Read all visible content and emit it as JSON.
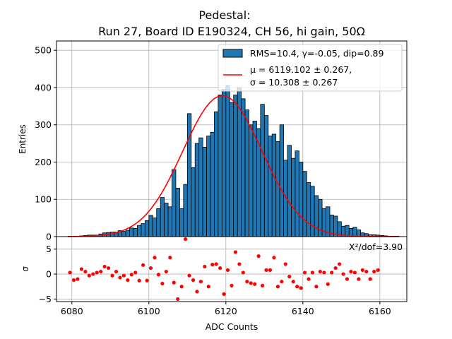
{
  "chart_data": [
    {
      "type": "bar",
      "title_line1": "Pedestal:",
      "title_line2": "Run 27, Board ID E190324, CH 56, hi gain, 50Ω",
      "ylabel": "Entries",
      "xlim": [
        6076,
        6167
      ],
      "ylim": [
        0,
        525
      ],
      "yticks": [
        0,
        100,
        200,
        300,
        400,
        500
      ],
      "grid": true,
      "legend_position": "top-right",
      "legend": [
        {
          "kind": "patch",
          "label": "RMS=10.4, γ=-0.05, dip=0.89"
        },
        {
          "kind": "line",
          "label_line1": "μ = 6119.102 ± 0.267,",
          "label_line2": "σ = 10.308 ± 0.267"
        }
      ],
      "bar_color": "#1f77b4",
      "fit_color": "#ff0000",
      "bin_start": 6079,
      "bin_width": 1,
      "counts": [
        1,
        1,
        1,
        2,
        3,
        4,
        4,
        4,
        7,
        10,
        11,
        12,
        12,
        16,
        14,
        17,
        23,
        22,
        30,
        35,
        43,
        57,
        50,
        75,
        105,
        90,
        80,
        180,
        130,
        75,
        140,
        330,
        185,
        250,
        265,
        240,
        270,
        280,
        335,
        380,
        395,
        405,
        360,
        380,
        400,
        370,
        340,
        300,
        310,
        290,
        355,
        325,
        270,
        275,
        255,
        300,
        205,
        245,
        210,
        230,
        200,
        175,
        145,
        135,
        110,
        100,
        75,
        80,
        58,
        55,
        40,
        28,
        30,
        22,
        25,
        18,
        10,
        8,
        5,
        5,
        4,
        3,
        2,
        1,
        1,
        1
      ],
      "fit": {
        "mu": 6119.102,
        "sigma": 10.308,
        "amplitude": 378
      }
    },
    {
      "type": "scatter",
      "xlabel": "ADC Counts",
      "ylabel": "σ",
      "xlim": [
        6076,
        6167
      ],
      "ylim": [
        -5.5,
        7.5
      ],
      "yticks": [
        -5,
        0,
        5
      ],
      "xticks": [
        6080,
        6100,
        6120,
        6140,
        6160
      ],
      "grid": true,
      "annotation": "X²/dof=3.90",
      "point_color": "#ff0000",
      "points": [
        [
          6079.5,
          0.3
        ],
        [
          6080.5,
          -1.2
        ],
        [
          6081.5,
          -1.0
        ],
        [
          6082.5,
          1.0
        ],
        [
          6083.5,
          0.5
        ],
        [
          6084.5,
          -0.3
        ],
        [
          6085.5,
          0.0
        ],
        [
          6086.5,
          0.3
        ],
        [
          6087.5,
          0.5
        ],
        [
          6088.5,
          1.5
        ],
        [
          6089.5,
          1.2
        ],
        [
          6090.5,
          -0.3
        ],
        [
          6091.5,
          0.5
        ],
        [
          6092.5,
          -0.7
        ],
        [
          6093.5,
          -0.3
        ],
        [
          6094.5,
          -1.2
        ],
        [
          6095.5,
          -0.1
        ],
        [
          6096.5,
          0.3
        ],
        [
          6097.5,
          -1.3
        ],
        [
          6098.5,
          1.8
        ],
        [
          6099.5,
          -1.3
        ],
        [
          6100.5,
          1.2
        ],
        [
          6101.5,
          3.3
        ],
        [
          6102.5,
          -0.1
        ],
        [
          6103.5,
          -1.9
        ],
        [
          6104.5,
          0.5
        ],
        [
          6105.5,
          3.3
        ],
        [
          6106.5,
          -1.7
        ],
        [
          6107.5,
          -5.0
        ],
        [
          6108.5,
          -2.5
        ],
        [
          6109.5,
          7.0
        ],
        [
          6110.5,
          -0.3
        ],
        [
          6111.5,
          -1.2
        ],
        [
          6112.5,
          -3.5
        ],
        [
          6113.5,
          -1.5
        ],
        [
          6114.5,
          1.5
        ],
        [
          6115.5,
          -2.5
        ],
        [
          6116.5,
          1.9
        ],
        [
          6117.5,
          2.0
        ],
        [
          6118.5,
          1.2
        ],
        [
          6119.5,
          -4.0
        ],
        [
          6120.5,
          0.8
        ],
        [
          6121.5,
          -2.3
        ],
        [
          6122.5,
          4.4
        ],
        [
          6123.5,
          2.0
        ],
        [
          6124.5,
          0.3
        ],
        [
          6125.5,
          -1.5
        ],
        [
          6126.5,
          -1.8
        ],
        [
          6127.5,
          -2.0
        ],
        [
          6128.5,
          3.6
        ],
        [
          6129.5,
          -2.3
        ],
        [
          6130.5,
          0.8
        ],
        [
          6131.5,
          0.8
        ],
        [
          6132.5,
          3.3
        ],
        [
          6133.5,
          -2.5
        ],
        [
          6134.5,
          -1.5
        ],
        [
          6135.5,
          2.0
        ],
        [
          6136.5,
          -0.5
        ],
        [
          6137.5,
          -1.5
        ],
        [
          6138.5,
          -2.5
        ],
        [
          6139.5,
          -2.8
        ],
        [
          6140.5,
          0.3
        ],
        [
          6141.5,
          -1.0
        ],
        [
          6142.5,
          0.3
        ],
        [
          6143.5,
          -2.5
        ],
        [
          6144.5,
          0.5
        ],
        [
          6145.5,
          0.3
        ],
        [
          6146.5,
          -2.0
        ],
        [
          6147.5,
          0.3
        ],
        [
          6148.5,
          1.2
        ],
        [
          6149.5,
          2.0
        ],
        [
          6150.5,
          0.0
        ],
        [
          6151.5,
          -1.0
        ],
        [
          6152.5,
          0.5
        ],
        [
          6153.5,
          0.3
        ],
        [
          6154.5,
          -1.0
        ],
        [
          6155.5,
          0.8
        ],
        [
          6156.5,
          0.5
        ],
        [
          6157.5,
          -1.0
        ],
        [
          6158.5,
          0.5
        ],
        [
          6159.5,
          0.8
        ]
      ]
    }
  ]
}
